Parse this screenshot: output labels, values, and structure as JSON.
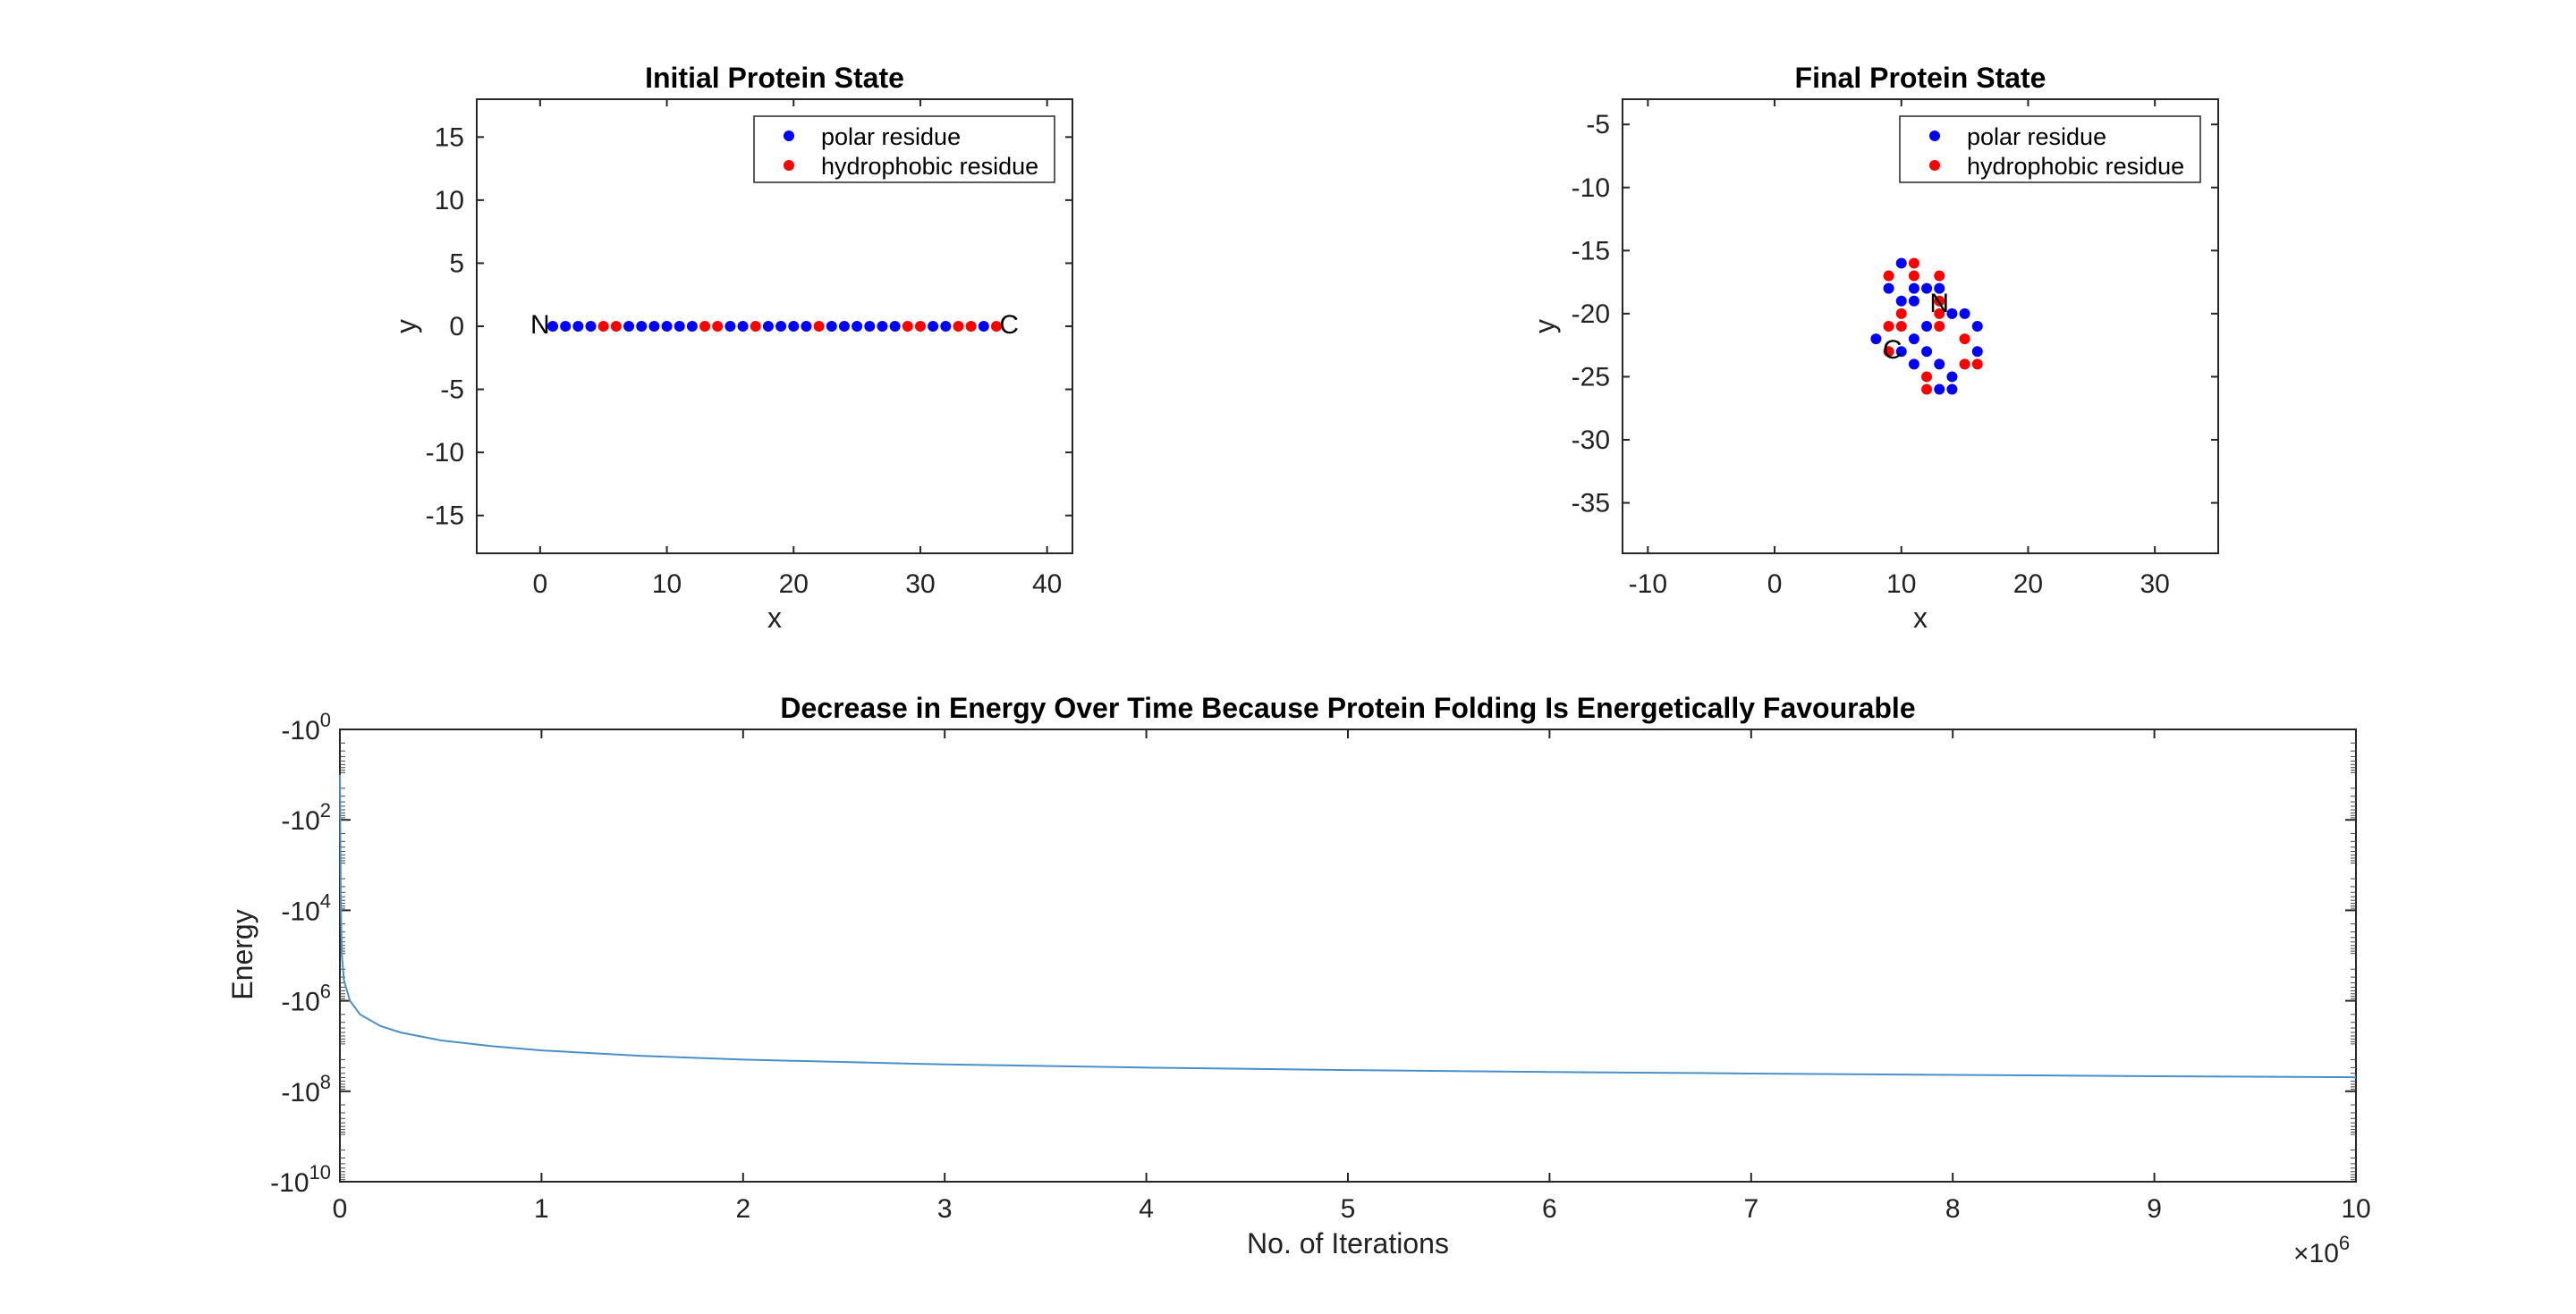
{
  "chart_data": [
    {
      "type": "scatter",
      "title": "Initial Protein State",
      "xlabel": "x",
      "ylabel": "y",
      "xlim": [
        -5,
        42
      ],
      "ylim": [
        -18,
        18
      ],
      "xticks": [
        0,
        10,
        20,
        30,
        40
      ],
      "yticks": [
        -15,
        -10,
        -5,
        0,
        5,
        10,
        15
      ],
      "grid": false,
      "legend_position": "top-right",
      "series": [
        {
          "name": "polar residue",
          "color": "#0000ff",
          "points": [
            [
              1,
              0
            ],
            [
              2,
              0
            ],
            [
              3,
              0
            ],
            [
              4,
              0
            ],
            [
              7,
              0
            ],
            [
              8,
              0
            ],
            [
              9,
              0
            ],
            [
              10,
              0
            ],
            [
              11,
              0
            ],
            [
              12,
              0
            ],
            [
              15,
              0
            ],
            [
              16,
              0
            ],
            [
              18,
              0
            ],
            [
              19,
              0
            ],
            [
              20,
              0
            ],
            [
              21,
              0
            ],
            [
              23,
              0
            ],
            [
              24,
              0
            ],
            [
              25,
              0
            ],
            [
              26,
              0
            ],
            [
              27,
              0
            ],
            [
              28,
              0
            ],
            [
              31,
              0
            ],
            [
              32,
              0
            ],
            [
              35,
              0
            ]
          ]
        },
        {
          "name": "hydrophobic residue",
          "color": "#ff0000",
          "points": [
            [
              5,
              0
            ],
            [
              6,
              0
            ],
            [
              13,
              0
            ],
            [
              14,
              0
            ],
            [
              17,
              0
            ],
            [
              22,
              0
            ],
            [
              29,
              0
            ],
            [
              30,
              0
            ],
            [
              33,
              0
            ],
            [
              34,
              0
            ],
            [
              36,
              0
            ]
          ]
        }
      ],
      "annotations": [
        {
          "text": "N",
          "x": 0,
          "y": 0
        },
        {
          "text": "C",
          "x": 37,
          "y": 0
        }
      ]
    },
    {
      "type": "scatter",
      "title": "Final Protein State",
      "xlabel": "x",
      "ylabel": "y",
      "xlim": [
        -12,
        35
      ],
      "ylim": [
        -39,
        -3
      ],
      "xticks": [
        -10,
        0,
        10,
        20,
        30
      ],
      "yticks": [
        -35,
        -30,
        -25,
        -20,
        -15,
        -10,
        -5
      ],
      "grid": false,
      "legend_position": "top-right",
      "series": [
        {
          "name": "polar residue",
          "color": "#0000ff",
          "points": [
            [
              10,
              -16
            ],
            [
              9,
              -18
            ],
            [
              11,
              -18
            ],
            [
              12,
              -18
            ],
            [
              10,
              -19
            ],
            [
              11,
              -19
            ],
            [
              13,
              -18
            ],
            [
              14,
              -20
            ],
            [
              15,
              -20
            ],
            [
              16,
              -21
            ],
            [
              12,
              -21
            ],
            [
              11,
              -22
            ],
            [
              8,
              -22
            ],
            [
              10,
              -23
            ],
            [
              11,
              -24
            ],
            [
              16,
              -23
            ],
            [
              13,
              -24
            ],
            [
              14,
              -25
            ],
            [
              13,
              -26
            ],
            [
              14,
              -26
            ],
            [
              12,
              -23
            ]
          ]
        },
        {
          "name": "hydrophobic residue",
          "color": "#ff0000",
          "points": [
            [
              9,
              -17
            ],
            [
              11,
              -16
            ],
            [
              11,
              -17
            ],
            [
              13,
              -17
            ],
            [
              13,
              -19
            ],
            [
              13,
              -20
            ],
            [
              10,
              -20
            ],
            [
              9,
              -21
            ],
            [
              10,
              -21
            ],
            [
              13,
              -21
            ],
            [
              15,
              -22
            ],
            [
              9,
              -23
            ],
            [
              15,
              -24
            ],
            [
              16,
              -24
            ],
            [
              12,
              -25
            ],
            [
              12,
              -26
            ]
          ]
        }
      ],
      "annotations": [
        {
          "text": "N",
          "x": 13,
          "y": -19.3
        },
        {
          "text": "C",
          "x": 9.3,
          "y": -23
        }
      ]
    },
    {
      "type": "line",
      "title": "Decrease in Energy Over Time Because Protein Folding Is Energetically Favourable",
      "xlabel": "No. of Iterations",
      "ylabel": "Energy",
      "x_exponent_label": "×10",
      "x_exponent": "6",
      "xlim": [
        0,
        10
      ],
      "xticks": [
        "0",
        "1",
        "2",
        "3",
        "4",
        "5",
        "6",
        "7",
        "8",
        "9",
        "10"
      ],
      "y_scale": "symlog-negative",
      "ylim": [
        -10000000000,
        -1
      ],
      "ytick_mantissa": "-10",
      "ytick_exponents": [
        "0",
        "2",
        "4",
        "6",
        "8",
        "10"
      ],
      "grid": false,
      "series": [
        {
          "color": "#4a90c8",
          "x": [
            0,
            0.005,
            0.01,
            0.02,
            0.05,
            0.1,
            0.2,
            0.3,
            0.5,
            0.75,
            1,
            1.5,
            2,
            3,
            4,
            5,
            6,
            7,
            8,
            9,
            10
          ],
          "y": [
            -10,
            -10000,
            -100000,
            -350000,
            -1000000,
            -2000000,
            -3600000,
            -5000000,
            -7500000,
            -10000000,
            -12500000,
            -16500000,
            -20000000,
            -25500000,
            -30000000,
            -34000000,
            -37500000,
            -40500000,
            -43500000,
            -46500000,
            -49000000
          ]
        }
      ]
    }
  ]
}
